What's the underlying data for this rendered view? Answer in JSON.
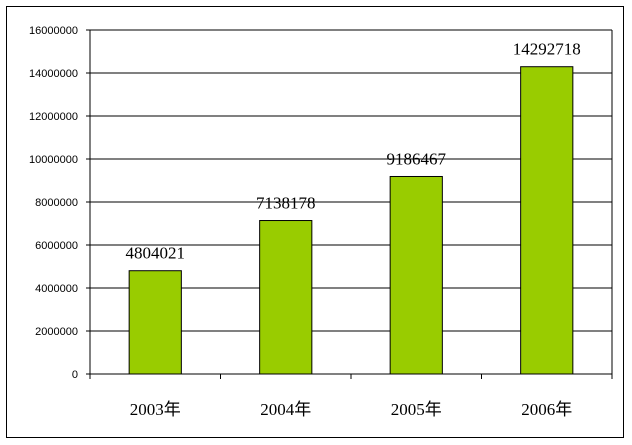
{
  "chart_data": {
    "type": "bar",
    "title": "",
    "xlabel": "",
    "ylabel": "",
    "categories": [
      "2003年",
      "2004年",
      "2005年",
      "2006年"
    ],
    "values": [
      4804021,
      7138178,
      9186467,
      14292718
    ],
    "data_labels": [
      "4804021",
      "7138178",
      "9186467",
      "14292718"
    ],
    "ylim": [
      0,
      16000000
    ],
    "yticks": [
      0,
      2000000,
      4000000,
      6000000,
      8000000,
      10000000,
      12000000,
      14000000,
      16000000
    ],
    "ytick_labels": [
      "0",
      "2000000",
      "4000000",
      "6000000",
      "8000000",
      "10000000",
      "12000000",
      "14000000",
      "16000000"
    ],
    "grid": true,
    "legend": "none",
    "colors": {
      "bar_fill": "#99CC00",
      "bar_stroke": "#000000",
      "grid": "#000000",
      "frame": "#000000"
    }
  }
}
